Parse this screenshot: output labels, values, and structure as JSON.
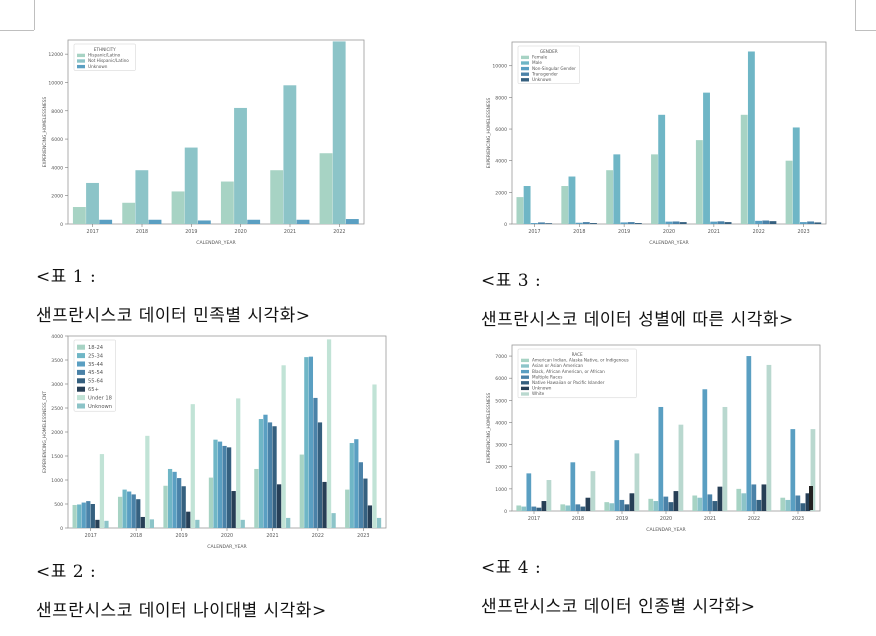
{
  "captions": [
    {
      "num": "<표 1 :",
      "text": "샌프란시스코 데이터 민족별 시각화>"
    },
    {
      "num": "<표 2 :",
      "text": "샌프란시스코 데이터 나이대별 시각화>"
    },
    {
      "num": "<표 3 :",
      "text": "샌프란시스코 데이터 성별에 따른 시각화>"
    },
    {
      "num": "<표 4 :",
      "text": "샌프란시스코 데이터 인종별 시각화>"
    }
  ],
  "colors": {
    "teal_1": "#a7d3c4",
    "teal_2": "#8cc4c8",
    "teal_3": "#6fb6c6",
    "blue_1": "#5a9fc2",
    "blue_2": "#4a82a8",
    "navy_1": "#35607f",
    "navy_2": "#273f56",
    "gray_1": "#b9d8cf",
    "mint": "#c1e3d6"
  },
  "chart_data": [
    {
      "id": "ethnicity",
      "type": "bar",
      "xlabel": "CALENDAR_YEAR",
      "ylabel": "EXPERIENCING_HOMELESSNESS",
      "ylim": [
        0,
        13000
      ],
      "yticks": [
        0,
        2000,
        4000,
        6000,
        8000,
        10000,
        12000
      ],
      "categories": [
        "2017",
        "2018",
        "2019",
        "2020",
        "2021",
        "2022"
      ],
      "legend_title": "ETHNICITY",
      "legend_position": "top-left",
      "series": [
        {
          "name": "Hispanic/Latino",
          "values": [
            1200,
            1500,
            2300,
            3000,
            3800,
            5000
          ]
        },
        {
          "name": "Not Hispanic/Latino",
          "values": [
            2900,
            3800,
            5400,
            8200,
            9800,
            12900
          ]
        },
        {
          "name": "Unknown",
          "values": [
            300,
            300,
            250,
            300,
            300,
            350
          ]
        }
      ]
    },
    {
      "id": "age",
      "type": "bar",
      "xlabel": "CALENDAR_YEAR",
      "ylabel": "EXPERIENCING_HOMELESSNESS_CNT",
      "ylim": [
        0,
        4000
      ],
      "yticks": [
        0,
        500,
        1000,
        1500,
        2000,
        2500,
        3000,
        3500,
        4000
      ],
      "categories": [
        "2017",
        "2018",
        "2019",
        "2020",
        "2021",
        "2022",
        "2023"
      ],
      "legend_position": "top-left",
      "series": [
        {
          "name": "18-24",
          "values": [
            480,
            650,
            880,
            1050,
            1230,
            1530,
            800
          ]
        },
        {
          "name": "25-34",
          "values": [
            490,
            800,
            1230,
            1840,
            2270,
            3560,
            1770
          ]
        },
        {
          "name": "35-44",
          "values": [
            530,
            760,
            1170,
            1800,
            2360,
            3570,
            1850
          ]
        },
        {
          "name": "45-54",
          "values": [
            560,
            700,
            1040,
            1710,
            2200,
            2710,
            1370
          ]
        },
        {
          "name": "55-64",
          "values": [
            500,
            600,
            870,
            1680,
            2120,
            2200,
            1030
          ]
        },
        {
          "name": "65+",
          "values": [
            170,
            230,
            340,
            770,
            910,
            960,
            470
          ]
        },
        {
          "name": "Under 18",
          "values": [
            1540,
            1920,
            2580,
            2700,
            3390,
            3930,
            2990
          ]
        },
        {
          "name": "Unknown",
          "values": [
            150,
            180,
            170,
            170,
            210,
            310,
            210
          ]
        }
      ]
    },
    {
      "id": "gender",
      "type": "bar",
      "xlabel": "CALENDAR_YEAR",
      "ylabel": "EXPERIENCING_HOMELESSNESS",
      "ylim": [
        0,
        11500
      ],
      "yticks": [
        0,
        2000,
        4000,
        6000,
        8000,
        10000
      ],
      "categories": [
        "2017",
        "2018",
        "2019",
        "2020",
        "2021",
        "2022",
        "2023"
      ],
      "legend_title": "GENDER",
      "legend_position": "top-left",
      "series": [
        {
          "name": "Female",
          "values": [
            1700,
            2400,
            3400,
            4400,
            5300,
            6900,
            4000
          ]
        },
        {
          "name": "Male",
          "values": [
            2400,
            3000,
            4400,
            6900,
            8300,
            10900,
            6100
          ]
        },
        {
          "name": "Non-Singular Gender",
          "values": [
            60,
            80,
            100,
            150,
            150,
            200,
            120
          ]
        },
        {
          "name": "Transgender",
          "values": [
            100,
            120,
            120,
            160,
            170,
            220,
            160
          ]
        },
        {
          "name": "Unknown",
          "values": [
            50,
            60,
            60,
            120,
            120,
            180,
            100
          ]
        }
      ]
    },
    {
      "id": "race",
      "type": "bar",
      "xlabel": "CALENDAR_YEAR",
      "ylabel": "EXPERIENCING_HOMELESSNESS",
      "ylim": [
        0,
        7500
      ],
      "yticks": [
        0,
        1000,
        2000,
        3000,
        4000,
        5000,
        6000,
        7000
      ],
      "categories": [
        "2017",
        "2018",
        "2019",
        "2020",
        "2021",
        "2022",
        "2023"
      ],
      "legend_title": "RACE",
      "legend_position": "top-left",
      "series": [
        {
          "name": "American Indian, Alaska Native, or Indigenous",
          "values": [
            250,
            300,
            400,
            550,
            700,
            1000,
            600
          ]
        },
        {
          "name": "Asian or Asian American",
          "values": [
            200,
            250,
            350,
            450,
            600,
            800,
            500
          ]
        },
        {
          "name": "Black, African American, or African",
          "values": [
            1700,
            2200,
            3200,
            4700,
            5500,
            7000,
            3700
          ]
        },
        {
          "name": "Multiple Races",
          "values": [
            200,
            300,
            500,
            650,
            750,
            1200,
            700
          ]
        },
        {
          "name": "Native Hawaiian or Pacific Islander",
          "values": [
            150,
            200,
            300,
            400,
            450,
            500,
            350
          ]
        },
        {
          "name": "Unknown",
          "values": [
            450,
            600,
            800,
            900,
            1100,
            1200,
            800
          ]
        },
        {
          "name": "White",
          "values": [
            1400,
            1800,
            2600,
            3900,
            4700,
            6600,
            3700
          ]
        }
      ]
    }
  ]
}
